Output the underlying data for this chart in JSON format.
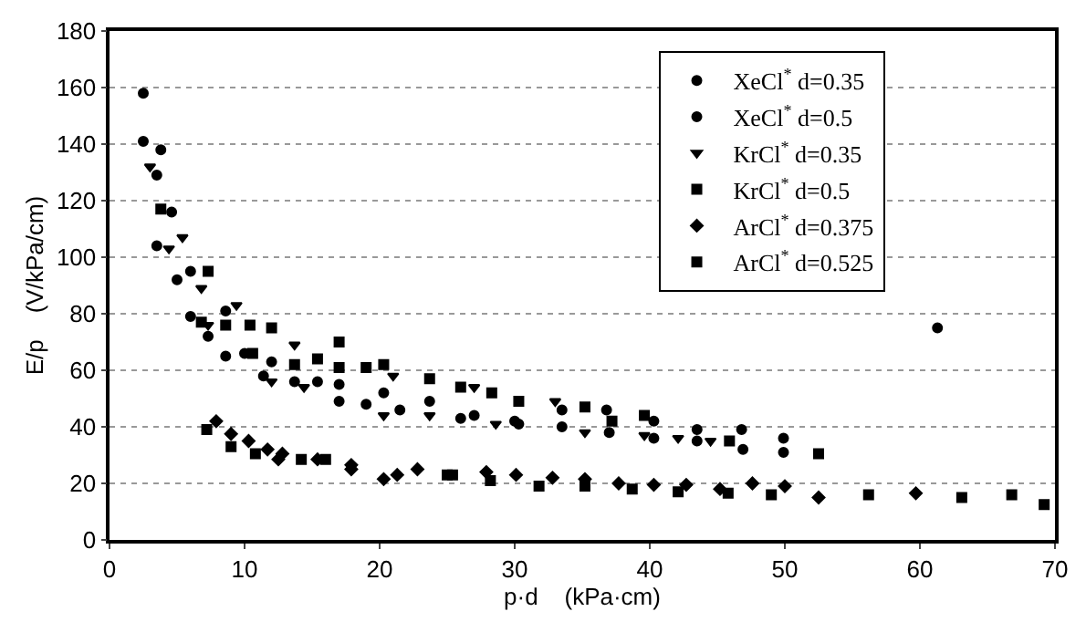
{
  "chart_data": {
    "type": "scatter",
    "xlabel": "p·d    (kPa·cm)",
    "ylabel": "E/p    (V/kPa/cm)",
    "xlim": [
      0,
      70
    ],
    "xticks": [
      0,
      10,
      20,
      30,
      40,
      50,
      60,
      70
    ],
    "ylim": [
      0,
      180
    ],
    "yticks": [
      0,
      20,
      40,
      60,
      80,
      100,
      120,
      140,
      160,
      180
    ],
    "grid": "y",
    "legend": "top right",
    "series": [
      {
        "name": "XeCl$^{*}$ d=0.35",
        "color": "#000000",
        "marker": "circle",
        "x": [
          2.5,
          3.8,
          3.5,
          5,
          6,
          7.3,
          8.6,
          11.4,
          13.7,
          17,
          19,
          21.5,
          26,
          30,
          33.5,
          37,
          40.3,
          43.5,
          46.9,
          49.9
        ],
        "values": [
          141,
          138,
          104,
          92,
          79,
          72,
          65,
          58,
          56,
          55,
          48,
          46,
          43,
          42,
          40,
          38,
          36,
          35,
          32,
          31
        ]
      },
      {
        "name": "XeCl$^{*}$ d=0.5",
        "color": "#000000",
        "marker": "circle",
        "x": [
          2.5,
          3.5,
          4.6,
          6,
          8.6,
          10,
          12,
          15.4,
          17,
          20.3,
          23.7,
          27,
          30.3,
          33.5,
          36.8,
          40.3,
          43.5,
          46.8,
          49.9,
          61.3
        ],
        "values": [
          158,
          129,
          116,
          95,
          81,
          66,
          63,
          56,
          49,
          52,
          49,
          44,
          41,
          46,
          46,
          42,
          39,
          39,
          36,
          75
        ]
      },
      {
        "name": "KrCl$^{*}$ d=0.35",
        "color": "#000000",
        "marker": "triangle",
        "x": [
          3,
          4.4,
          5.4,
          6.8,
          7.3,
          9.4,
          12,
          13.7,
          14.4,
          20.3,
          21,
          23.7,
          27,
          28.6,
          33,
          35.2,
          39.6,
          42.1,
          44.5
        ],
        "values": [
          132,
          103,
          107,
          89,
          76,
          83,
          56,
          69,
          54,
          44,
          58,
          44,
          54,
          41,
          49,
          38,
          37,
          36,
          35
        ]
      },
      {
        "name": "KrCl$^{*}$ d=0.5",
        "color": "#000000",
        "marker": "square",
        "x": [
          3.8,
          7.3,
          6.8,
          8.6,
          10.4,
          10.6,
          12,
          13.7,
          15.4,
          17,
          17,
          19,
          20.3,
          23.7,
          26,
          28.3,
          30.3,
          35.2,
          37.2,
          39.6,
          45.9,
          52.5
        ],
        "values": [
          117,
          95,
          77,
          76,
          76,
          66,
          75,
          62,
          64,
          70,
          61,
          61,
          62,
          57,
          54,
          52,
          49,
          47,
          42,
          44,
          35,
          30.5
        ]
      },
      {
        "name": "ArCl$^{*}$ d=0.375",
        "color": "#000000",
        "marker": "diamond",
        "x": [
          7.9,
          9,
          10.3,
          11.7,
          12.5,
          12.8,
          15.4,
          17.9,
          17.9,
          20.3,
          21.3,
          22.8,
          27.9,
          30.1,
          32.8,
          35.2,
          37.7,
          40.3,
          42.7,
          45.2,
          47.6,
          50,
          52.5,
          59.7
        ],
        "values": [
          42,
          37.5,
          35,
          32,
          28.5,
          30.5,
          28.5,
          26.5,
          25,
          21.5,
          23,
          25,
          24,
          23,
          22,
          21.5,
          20,
          19.5,
          19.5,
          18,
          20,
          19,
          15,
          16.5
        ]
      },
      {
        "name": "ArCl$^{*}$ d=0.525",
        "color": "#000000",
        "marker": "square",
        "x": [
          7.2,
          9,
          10.8,
          14.2,
          16,
          25,
          25.4,
          28.2,
          31.8,
          35.2,
          38.7,
          42.1,
          45.8,
          49,
          56.2,
          63.1,
          66.8,
          69.2
        ],
        "values": [
          39,
          33,
          30.5,
          28.5,
          28.5,
          23,
          23,
          21,
          19,
          19,
          18,
          17,
          16.5,
          16,
          16,
          15,
          16,
          12.5
        ]
      }
    ]
  }
}
